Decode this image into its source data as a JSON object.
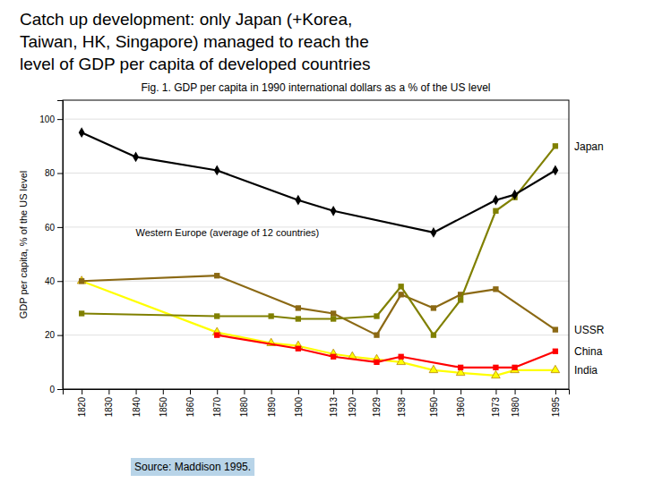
{
  "chart_data": {
    "type": "line",
    "title": [
      "  Catch up development: only Japan (+Korea,",
      "  Taiwan, HK, Singapore) managed to reach the",
      "  level of GDP per capita of developed countries"
    ],
    "subtitle": "Fig. 1. GDP per capita in 1990 international dollars as a % of the US level",
    "y_label": "GDP per capita, % of the US level",
    "source": "Source:  Maddison 1995.",
    "xlim": [
      1813,
      2000
    ],
    "xticks": [
      1820,
      1830,
      1840,
      1850,
      1860,
      1870,
      1880,
      1890,
      1900,
      1913,
      1920,
      1929,
      1938,
      1950,
      1960,
      1973,
      1980,
      1995
    ],
    "ylim": [
      0,
      107
    ],
    "yticks": [
      0,
      20,
      40,
      60,
      80,
      100
    ],
    "grid": "y",
    "series": [
      {
        "name": "Western Europe (average of 12 countries)",
        "color": "#000000",
        "marker": "diamond",
        "x": [
          1820,
          1840,
          1870,
          1900,
          1913,
          1950,
          1973,
          1980,
          1995
        ],
        "values": [
          95,
          86,
          81,
          70,
          66,
          58,
          70,
          72,
          81
        ]
      },
      {
        "name": "Japan",
        "color": "#808000",
        "marker": "square",
        "x": [
          1820,
          1870,
          1890,
          1900,
          1913,
          1929,
          1938,
          1950,
          1960,
          1973,
          1980,
          1995
        ],
        "values": [
          28,
          27,
          27,
          26,
          26,
          27,
          38,
          20,
          33,
          66,
          71,
          90
        ]
      },
      {
        "name": "USSR",
        "color": "#8B6914",
        "marker": "square",
        "x": [
          1820,
          1870,
          1900,
          1913,
          1929,
          1938,
          1950,
          1960,
          1973,
          1995
        ],
        "values": [
          40,
          42,
          30,
          28,
          20,
          35,
          30,
          35,
          37,
          22
        ]
      },
      {
        "name": "China",
        "color": "#ff0000",
        "marker": "square",
        "x": [
          1870,
          1900,
          1913,
          1929,
          1938,
          1960,
          1973,
          1980,
          1995
        ],
        "values": [
          20,
          15,
          12,
          10,
          12,
          8,
          8,
          8,
          14
        ]
      },
      {
        "name": "India",
        "color": "#ffff00",
        "marker": "triangle",
        "x": [
          1820,
          1870,
          1890,
          1900,
          1913,
          1920,
          1929,
          1938,
          1950,
          1960,
          1973,
          1980,
          1995
        ],
        "values": [
          40,
          21,
          17,
          16,
          13,
          12,
          11,
          10,
          7,
          6,
          5,
          7,
          7
        ]
      }
    ]
  }
}
